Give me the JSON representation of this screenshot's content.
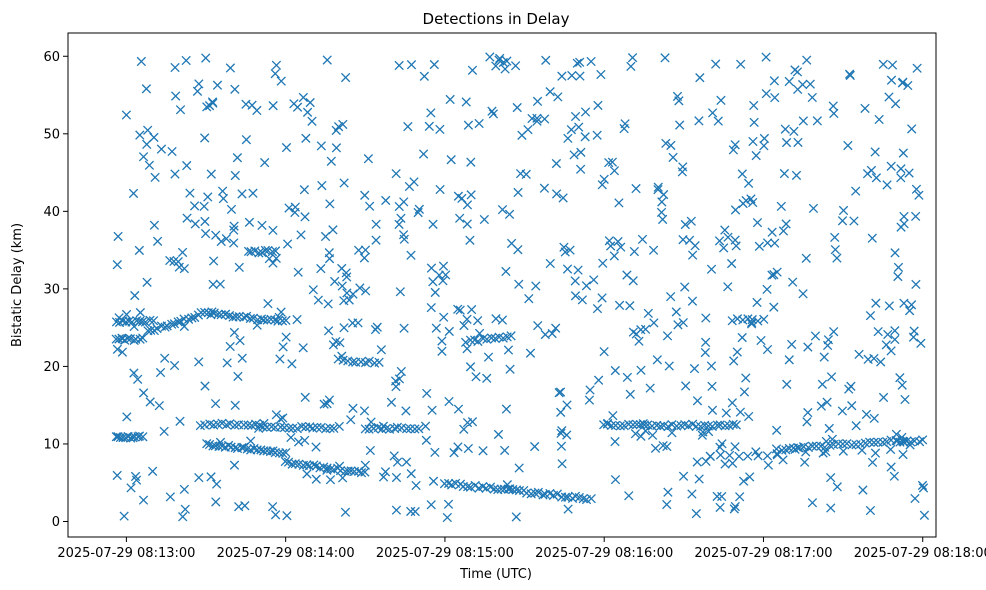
{
  "chart_data": {
    "type": "scatter",
    "title": "Detections in Delay",
    "xlabel": "Time (UTC)",
    "ylabel": "Bistatic Delay (km)",
    "marker": "x",
    "color": "#1f77b4",
    "xlim_seconds": [
      -22,
      305
    ],
    "ylim": [
      -2,
      63
    ],
    "x_reference": "2025-07-29 08:13:00",
    "x_ticks": [
      {
        "seconds": 0,
        "label": "2025-07-29 08:13:00"
      },
      {
        "seconds": 60,
        "label": "2025-07-29 08:14:00"
      },
      {
        "seconds": 120,
        "label": "2025-07-29 08:15:00"
      },
      {
        "seconds": 180,
        "label": "2025-07-29 08:16:00"
      },
      {
        "seconds": 240,
        "label": "2025-07-29 08:17:00"
      },
      {
        "seconds": 300,
        "label": "2025-07-29 08:18:00"
      }
    ],
    "y_ticks": [
      0,
      10,
      20,
      30,
      40,
      50,
      60
    ],
    "x_range_seconds": [
      -4,
      301
    ],
    "tracks": [
      {
        "t_start": -4,
        "t_end": 6,
        "y_start": 10.9,
        "y_end": 10.9,
        "count": 12
      },
      {
        "t_start": -4,
        "t_end": 6,
        "y_start": 23.5,
        "y_end": 23.5,
        "count": 10
      },
      {
        "t_start": -4,
        "t_end": 10,
        "y_start": 25.8,
        "y_end": 25.8,
        "count": 12
      },
      {
        "t_start": 8,
        "t_end": 32,
        "y_start": 24.5,
        "y_end": 27.2,
        "count": 20
      },
      {
        "t_start": 32,
        "t_end": 60,
        "y_start": 26.8,
        "y_end": 25.8,
        "count": 22
      },
      {
        "t_start": 28,
        "t_end": 52,
        "y_start": 12.5,
        "y_end": 12.5,
        "count": 16
      },
      {
        "t_start": 30,
        "t_end": 60,
        "y_start": 10.0,
        "y_end": 8.9,
        "count": 26
      },
      {
        "t_start": 60,
        "t_end": 90,
        "y_start": 7.6,
        "y_end": 6.3,
        "count": 24
      },
      {
        "t_start": 46,
        "t_end": 56,
        "y_start": 34.8,
        "y_end": 34.8,
        "count": 9
      },
      {
        "t_start": 50,
        "t_end": 80,
        "y_start": 12.1,
        "y_end": 12.1,
        "count": 20
      },
      {
        "t_start": 80,
        "t_end": 95,
        "y_start": 20.8,
        "y_end": 20.5,
        "count": 10
      },
      {
        "t_start": 90,
        "t_end": 110,
        "y_start": 12.0,
        "y_end": 12.0,
        "count": 14
      },
      {
        "t_start": 120,
        "t_end": 175,
        "y_start": 4.9,
        "y_end": 2.9,
        "count": 40
      },
      {
        "t_start": 128,
        "t_end": 145,
        "y_start": 23.2,
        "y_end": 23.9,
        "count": 12
      },
      {
        "t_start": 180,
        "t_end": 230,
        "y_start": 12.4,
        "y_end": 12.4,
        "count": 34
      },
      {
        "t_start": 220,
        "t_end": 245,
        "y_start": 8.5,
        "y_end": 8.5,
        "count": 8
      },
      {
        "t_start": 245,
        "t_end": 290,
        "y_start": 9.2,
        "y_end": 10.5,
        "count": 28
      },
      {
        "t_start": 290,
        "t_end": 300,
        "y_start": 10.4,
        "y_end": 10.4,
        "count": 8
      },
      {
        "t_start": 228,
        "t_end": 238,
        "y_start": 26.0,
        "y_end": 26.0,
        "count": 6
      }
    ],
    "scattered_points": {
      "count": 760,
      "t_range": [
        -4,
        301
      ],
      "y_range": [
        0.5,
        60
      ],
      "distribution": "roughly uniform clutter"
    }
  }
}
